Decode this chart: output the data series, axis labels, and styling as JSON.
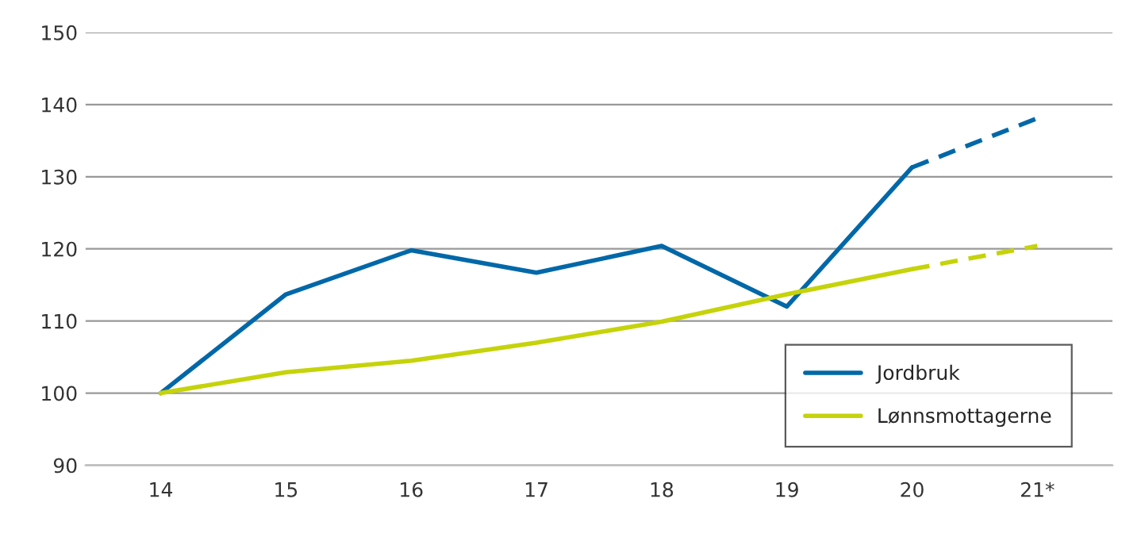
{
  "chart_data": {
    "type": "line",
    "categories": [
      "14",
      "15",
      "16",
      "17",
      "18",
      "19",
      "20",
      "21*"
    ],
    "series": [
      {
        "name": "Jordbruk",
        "color": "#0068a8",
        "line_style": "solid",
        "values": [
          100,
          113.7,
          119.8,
          116.7,
          120.4,
          112,
          131.3,
          null
        ]
      },
      {
        "name": "Lønnsmottagerne",
        "color": "#c5d30a",
        "line_style": "solid",
        "values": [
          100,
          102.9,
          104.5,
          107,
          109.9,
          113.7,
          117.2,
          null
        ]
      },
      {
        "color": "#0068a8",
        "line_style": "dashed",
        "values": [
          null,
          null,
          null,
          null,
          null,
          null,
          131.3,
          138.1
        ]
      },
      {
        "color": "#c5d30a",
        "line_style": "dashed",
        "values": [
          null,
          null,
          null,
          null,
          null,
          null,
          117.2,
          120.4
        ]
      }
    ],
    "ylim": [
      90,
      150
    ],
    "yticks": [
      90,
      100,
      110,
      120,
      130,
      140,
      150
    ],
    "grid": "y",
    "legend": "bottom right",
    "marker": "none"
  }
}
